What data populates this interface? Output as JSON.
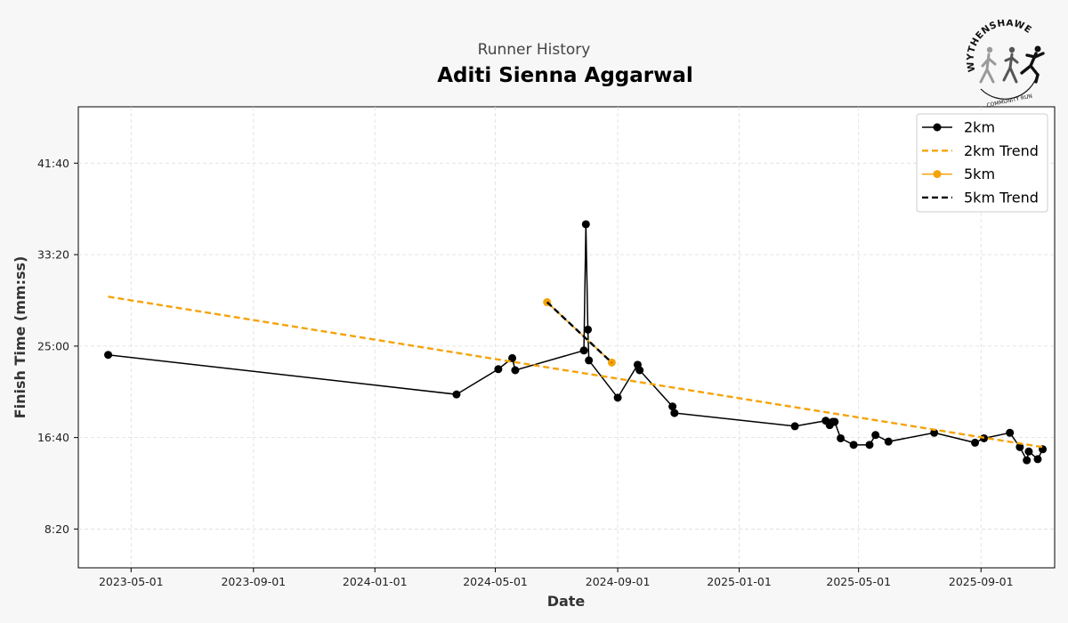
{
  "header": {
    "subtitle": "Runner History",
    "title": "Aditi Sienna Aggarwal"
  },
  "logo": {
    "arc_text": "WYTHENSHAWE",
    "sub_text": "COMMUNITY RUN",
    "icon": "runners-logo-icon"
  },
  "colors": {
    "background": "#f7f7f7",
    "series_2km": "#000000",
    "series_5km": "#f5a30a",
    "grid": "#dddddd"
  },
  "chart_data": {
    "type": "line",
    "title": "Aditi Sienna Aggarwal",
    "subtitle": "Runner History",
    "xlabel": "Date",
    "ylabel": "Finish Time (mm:ss)",
    "x_ticks": [
      "2023-05-01",
      "2023-09-01",
      "2024-01-01",
      "2024-05-01",
      "2024-09-01",
      "2025-01-01",
      "2025-05-01",
      "2025-09-01"
    ],
    "y_ticks": [
      "8:20",
      "16:40",
      "25:00",
      "33:20",
      "41:40"
    ],
    "xlim": [
      "2023-03-09",
      "2025-11-14"
    ],
    "ylim": [
      4.8,
      46.8
    ],
    "y_unit": "minutes",
    "grid": true,
    "legend_position": "top-right",
    "series": [
      {
        "name": "2km",
        "style": "solid-markers",
        "color": "#000000",
        "points": [
          [
            "2023-04-08",
            24.2
          ],
          [
            "2024-03-23",
            20.6
          ],
          [
            "2024-05-04",
            22.9
          ],
          [
            "2024-05-18",
            23.9
          ],
          [
            "2024-05-21",
            22.8
          ],
          [
            "2024-07-29",
            24.6
          ],
          [
            "2024-07-31",
            36.1
          ],
          [
            "2024-08-02",
            26.5
          ],
          [
            "2024-08-03",
            23.7
          ],
          [
            "2024-09-01",
            20.3
          ],
          [
            "2024-09-21",
            23.3
          ],
          [
            "2024-09-23",
            22.8
          ],
          [
            "2024-10-26",
            19.5
          ],
          [
            "2024-10-28",
            18.9
          ],
          [
            "2025-02-26",
            17.7
          ],
          [
            "2025-03-29",
            18.2
          ],
          [
            "2025-04-02",
            17.8
          ],
          [
            "2025-04-05",
            18.1
          ],
          [
            "2025-04-07",
            18.1
          ],
          [
            "2025-04-13",
            16.6
          ],
          [
            "2025-04-26",
            16.0
          ],
          [
            "2025-05-12",
            16.0
          ],
          [
            "2025-05-18",
            16.9
          ],
          [
            "2025-05-31",
            16.3
          ],
          [
            "2025-07-16",
            17.1
          ],
          [
            "2025-08-26",
            16.2
          ],
          [
            "2025-09-04",
            16.6
          ],
          [
            "2025-09-30",
            17.1
          ],
          [
            "2025-10-10",
            15.8
          ],
          [
            "2025-10-17",
            14.6
          ],
          [
            "2025-10-19",
            15.4
          ],
          [
            "2025-10-28",
            14.7
          ],
          [
            "2025-11-02",
            15.6
          ]
        ]
      },
      {
        "name": "2km Trend",
        "style": "dashed",
        "color": "#f5a30a",
        "points": [
          [
            "2023-04-08",
            29.5
          ],
          [
            "2025-11-02",
            15.8
          ]
        ]
      },
      {
        "name": "5km",
        "style": "solid-markers",
        "color": "#f5a30a",
        "points": [
          [
            "2024-06-22",
            29.0
          ],
          [
            "2024-08-26",
            23.5
          ]
        ]
      },
      {
        "name": "5km Trend",
        "style": "dashed",
        "color": "#000000",
        "points": [
          [
            "2024-06-22",
            29.0
          ],
          [
            "2024-08-26",
            23.5
          ]
        ]
      }
    ]
  }
}
